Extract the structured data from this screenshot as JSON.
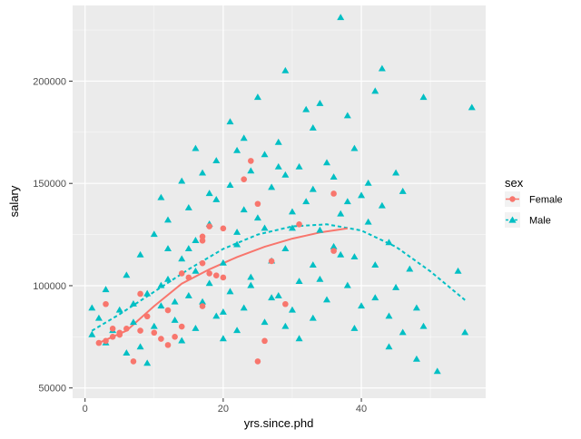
{
  "chart_data": {
    "type": "scatter",
    "xlabel": "yrs.since.phd",
    "ylabel": "salary",
    "xlim": [
      -1.8,
      58
    ],
    "ylim": [
      45000,
      237000
    ],
    "x_ticks": [
      0,
      20,
      40
    ],
    "y_ticks": [
      50000,
      100000,
      150000,
      200000
    ],
    "y_tick_labels": [
      "50000",
      "100000",
      "150000",
      "200000"
    ],
    "grid": true,
    "legend": {
      "title": "sex",
      "position": "right"
    },
    "colors": {
      "Female": "#F8766D",
      "Male": "#00BFC4",
      "panel": "#EBEBEB",
      "grid": "#FFFFFF"
    },
    "series": [
      {
        "name": "Female",
        "marker": "circle",
        "line_style": "solid",
        "points": [
          [
            2,
            72000
          ],
          [
            3,
            73000
          ],
          [
            3,
            91000
          ],
          [
            4,
            79000
          ],
          [
            5,
            77000
          ],
          [
            5,
            76000
          ],
          [
            6,
            79000
          ],
          [
            7,
            63000
          ],
          [
            8,
            78000
          ],
          [
            10,
            77000
          ],
          [
            11,
            74000
          ],
          [
            12,
            71000
          ],
          [
            13,
            75000
          ],
          [
            14,
            106000
          ],
          [
            17,
            90000
          ],
          [
            17,
            111000
          ],
          [
            17,
            122000
          ],
          [
            17,
            124000
          ],
          [
            18,
            106000
          ],
          [
            18,
            129000
          ],
          [
            19,
            105000
          ],
          [
            20,
            128000
          ],
          [
            23,
            152000
          ],
          [
            24,
            161000
          ],
          [
            25,
            63000
          ],
          [
            25,
            140000
          ],
          [
            26,
            73000
          ],
          [
            29,
            91000
          ],
          [
            31,
            130000
          ],
          [
            36,
            117000
          ],
          [
            36,
            145000
          ],
          [
            4,
            75000
          ],
          [
            8,
            96000
          ],
          [
            12,
            88000
          ],
          [
            15,
            104000
          ],
          [
            20,
            104000
          ],
          [
            9,
            85000
          ],
          [
            27,
            112000
          ],
          [
            14,
            80000
          ]
        ],
        "fit": [
          [
            2,
            72000
          ],
          [
            6,
            78000
          ],
          [
            10,
            90000
          ],
          [
            14,
            101000
          ],
          [
            18,
            108000
          ],
          [
            22,
            114000
          ],
          [
            26,
            119000
          ],
          [
            30,
            123000
          ],
          [
            34,
            126000
          ],
          [
            38,
            128000
          ]
        ]
      },
      {
        "name": "Male",
        "marker": "triangle",
        "line_style": "dashed",
        "points": [
          [
            37,
            231000
          ],
          [
            43,
            206000
          ],
          [
            29,
            205000
          ],
          [
            42,
            195000
          ],
          [
            49,
            192000
          ],
          [
            56,
            187000
          ],
          [
            25,
            192000
          ],
          [
            34,
            189000
          ],
          [
            32,
            186000
          ],
          [
            38,
            183000
          ],
          [
            21,
            180000
          ],
          [
            33,
            177000
          ],
          [
            23,
            172000
          ],
          [
            28,
            170000
          ],
          [
            16,
            167000
          ],
          [
            22,
            166000
          ],
          [
            39,
            167000
          ],
          [
            26,
            164000
          ],
          [
            19,
            161000
          ],
          [
            31,
            158000
          ],
          [
            24,
            156000
          ],
          [
            17,
            155000
          ],
          [
            29,
            154000
          ],
          [
            36,
            153000
          ],
          [
            45,
            155000
          ],
          [
            14,
            151000
          ],
          [
            21,
            149000
          ],
          [
            27,
            148000
          ],
          [
            33,
            147000
          ],
          [
            11,
            143000
          ],
          [
            19,
            142000
          ],
          [
            40,
            144000
          ],
          [
            46,
            146000
          ],
          [
            15,
            138000
          ],
          [
            23,
            137000
          ],
          [
            30,
            136000
          ],
          [
            37,
            135000
          ],
          [
            43,
            139000
          ],
          [
            12,
            132000
          ],
          [
            18,
            130000
          ],
          [
            26,
            128000
          ],
          [
            34,
            127000
          ],
          [
            41,
            131000
          ],
          [
            10,
            125000
          ],
          [
            16,
            122000
          ],
          [
            22,
            120000
          ],
          [
            29,
            118000
          ],
          [
            36,
            119000
          ],
          [
            44,
            121000
          ],
          [
            8,
            115000
          ],
          [
            14,
            113000
          ],
          [
            20,
            111000
          ],
          [
            27,
            112000
          ],
          [
            33,
            110000
          ],
          [
            39,
            114000
          ],
          [
            47,
            108000
          ],
          [
            6,
            105000
          ],
          [
            12,
            103000
          ],
          [
            18,
            101000
          ],
          [
            24,
            104000
          ],
          [
            31,
            102000
          ],
          [
            38,
            100000
          ],
          [
            45,
            99000
          ],
          [
            54,
            107000
          ],
          [
            3,
            98000
          ],
          [
            9,
            96000
          ],
          [
            15,
            95000
          ],
          [
            21,
            97000
          ],
          [
            28,
            95000
          ],
          [
            35,
            93000
          ],
          [
            42,
            94000
          ],
          [
            1,
            89000
          ],
          [
            5,
            88000
          ],
          [
            11,
            90000
          ],
          [
            17,
            92000
          ],
          [
            23,
            89000
          ],
          [
            30,
            88000
          ],
          [
            40,
            90000
          ],
          [
            48,
            89000
          ],
          [
            2,
            84000
          ],
          [
            7,
            82000
          ],
          [
            13,
            83000
          ],
          [
            19,
            85000
          ],
          [
            26,
            82000
          ],
          [
            33,
            84000
          ],
          [
            44,
            85000
          ],
          [
            4,
            78000
          ],
          [
            10,
            80000
          ],
          [
            16,
            79000
          ],
          [
            22,
            78000
          ],
          [
            29,
            80000
          ],
          [
            39,
            79000
          ],
          [
            49,
            80000
          ],
          [
            3,
            72000
          ],
          [
            8,
            70000
          ],
          [
            14,
            73000
          ],
          [
            20,
            74000
          ],
          [
            31,
            74000
          ],
          [
            46,
            77000
          ],
          [
            55,
            77000
          ],
          [
            6,
            67000
          ],
          [
            44,
            70000
          ],
          [
            48,
            64000
          ],
          [
            51,
            58000
          ],
          [
            9,
            62000
          ],
          [
            1,
            76000
          ],
          [
            12,
            118000
          ],
          [
            18,
            145000
          ],
          [
            25,
            133000
          ],
          [
            35,
            160000
          ],
          [
            41,
            150000
          ],
          [
            24,
            100000
          ],
          [
            30,
            128000
          ],
          [
            38,
            141000
          ],
          [
            13,
            92000
          ],
          [
            20,
            87000
          ],
          [
            27,
            94000
          ],
          [
            34,
            103000
          ],
          [
            16,
            107000
          ],
          [
            22,
            126000
          ],
          [
            11,
            100000
          ],
          [
            37,
            115000
          ],
          [
            42,
            110000
          ],
          [
            28,
            158000
          ],
          [
            32,
            141000
          ],
          [
            7,
            91000
          ],
          [
            15,
            118000
          ]
        ],
        "fit": [
          [
            1,
            78000
          ],
          [
            5,
            86000
          ],
          [
            10,
            97000
          ],
          [
            15,
            108000
          ],
          [
            20,
            118000
          ],
          [
            25,
            125000
          ],
          [
            30,
            129000
          ],
          [
            35,
            130000
          ],
          [
            40,
            127000
          ],
          [
            45,
            119000
          ],
          [
            50,
            107000
          ],
          [
            55,
            93000
          ]
        ]
      }
    ]
  }
}
